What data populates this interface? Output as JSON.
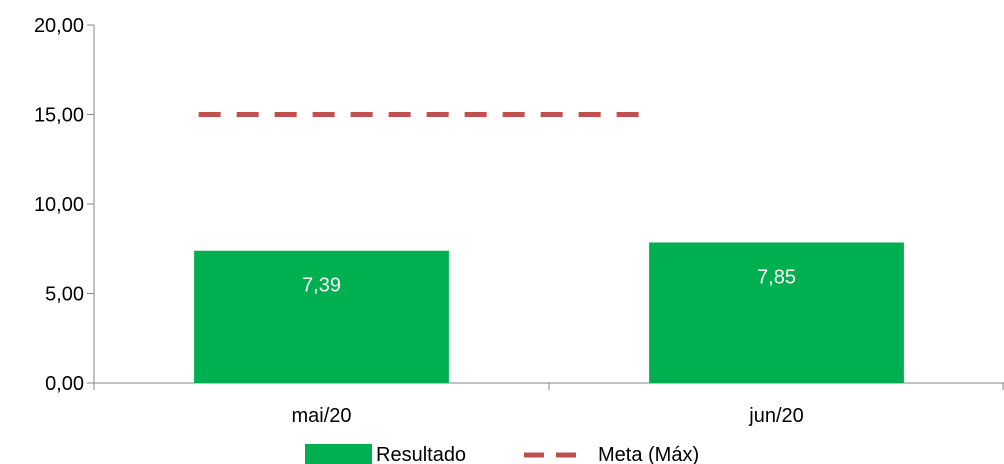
{
  "chart_data": {
    "type": "bar",
    "categories": [
      "mai/20",
      "jun/20"
    ],
    "series": [
      {
        "name": "Resultado",
        "kind": "bar",
        "values": [
          7.39,
          7.85
        ],
        "data_labels": [
          "7,39",
          "7,85"
        ],
        "color": "#00b050"
      },
      {
        "name": "Meta (Máx)",
        "kind": "line",
        "style": "dashed",
        "values": [
          15,
          15
        ],
        "color": "#c0504d"
      }
    ],
    "yticks": [
      0,
      5,
      10,
      15,
      20
    ],
    "ytick_labels": [
      "0,00",
      "5,00",
      "10,00",
      "15,00",
      "20,00"
    ],
    "ylim": [
      0,
      20
    ],
    "grid": false,
    "legend": "bottom-center"
  }
}
